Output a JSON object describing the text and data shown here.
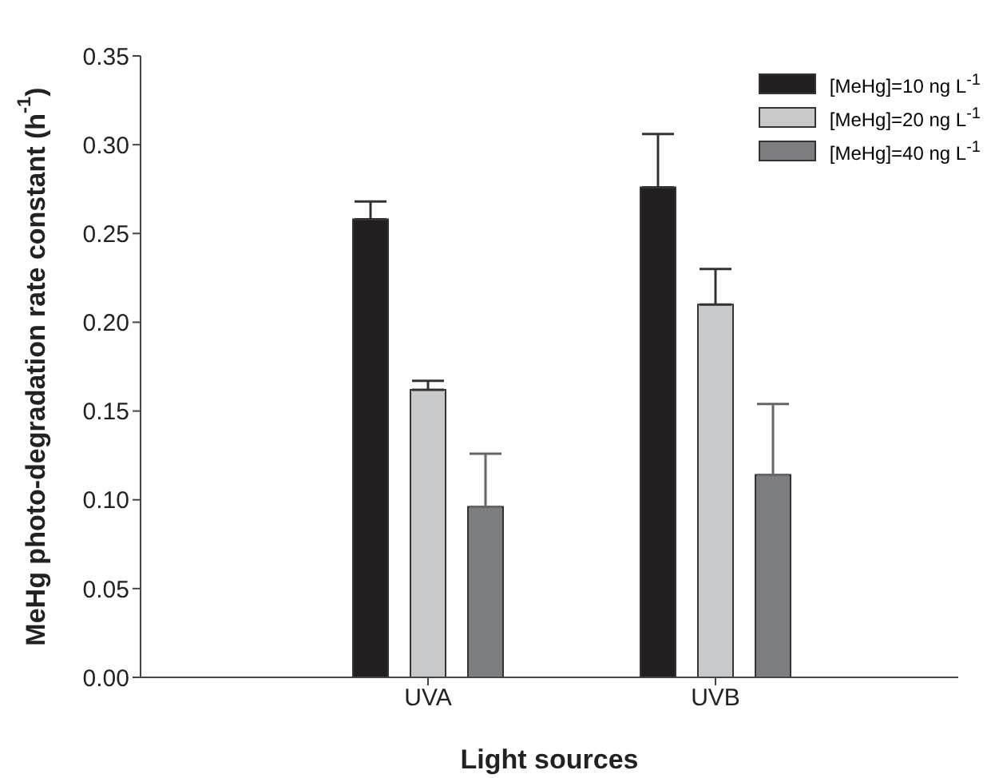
{
  "chart_data": {
    "type": "bar",
    "xlabel": "Light sources",
    "ylabel": "MeHg photo-degradation rate constant (h$^{-1}$)",
    "categories": [
      "UVA",
      "UVB"
    ],
    "series": [
      {
        "name": "[MeHg]=10 ng L$^{-1}$",
        "color": "#231f20",
        "values": [
          0.258,
          0.276
        ],
        "errors": [
          [
            0.258,
            0.268
          ],
          [
            0.276,
            0.306
          ]
        ]
      },
      {
        "name": "[MeHg]=20 ng L$^{-1}$",
        "color": "#c8c9cb",
        "values": [
          0.162,
          0.21
        ],
        "errors": [
          [
            0.162,
            0.167
          ],
          [
            0.21,
            0.23
          ]
        ]
      },
      {
        "name": "[MeHg]=40 ng L$^{-1}$",
        "color": "#7c7d80",
        "values": [
          0.096,
          0.114
        ],
        "errors": [
          [
            0.096,
            0.126
          ],
          [
            0.114,
            0.154
          ]
        ]
      }
    ],
    "ylim": [
      0,
      0.35
    ],
    "yticks": [
      {
        "value": 0,
        "label": "0.00"
      },
      0.05,
      {
        "value": 0.1,
        "label": "0.10"
      },
      0.15,
      {
        "value": 0.2,
        "label": "0.20"
      },
      0.25,
      {
        "value": 0.3,
        "label": "0.30"
      },
      0.35
    ],
    "grid": false,
    "legend": "top right"
  }
}
